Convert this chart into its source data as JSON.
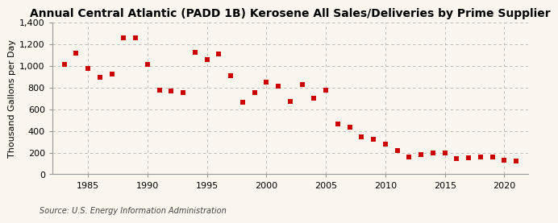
{
  "title": "Annual Central Atlantic (PADD 1B) Kerosene All Sales/Deliveries by Prime Supplier",
  "ylabel": "Thousand Gallons per Day",
  "source": "Source: U.S. Energy Information Administration",
  "background_color": "#faf6ed",
  "marker_color": "#cc0000",
  "years": [
    1983,
    1984,
    1985,
    1986,
    1987,
    1988,
    1989,
    1990,
    1991,
    1992,
    1993,
    1994,
    1995,
    1996,
    1997,
    1998,
    1999,
    2000,
    2001,
    2002,
    2003,
    2004,
    2005,
    2006,
    2007,
    2008,
    2009,
    2010,
    2011,
    2012,
    2013,
    2014,
    2015,
    2016,
    2017,
    2018,
    2019,
    2020,
    2021
  ],
  "values": [
    1010,
    1115,
    975,
    890,
    920,
    1255,
    1260,
    1010,
    775,
    770,
    755,
    1120,
    1055,
    1110,
    910,
    660,
    755,
    850,
    810,
    670,
    830,
    700,
    775,
    460,
    430,
    345,
    320,
    275,
    220,
    160,
    180,
    200,
    195,
    145,
    150,
    160,
    160,
    130,
    120
  ],
  "ylim": [
    0,
    1400
  ],
  "yticks": [
    0,
    200,
    400,
    600,
    800,
    1000,
    1200,
    1400
  ],
  "xlim": [
    1982,
    2022
  ],
  "xticks": [
    1985,
    1990,
    1995,
    2000,
    2005,
    2010,
    2015,
    2020
  ],
  "title_fontsize": 10,
  "ylabel_fontsize": 8,
  "tick_fontsize": 8,
  "source_fontsize": 7,
  "marker_size": 14
}
